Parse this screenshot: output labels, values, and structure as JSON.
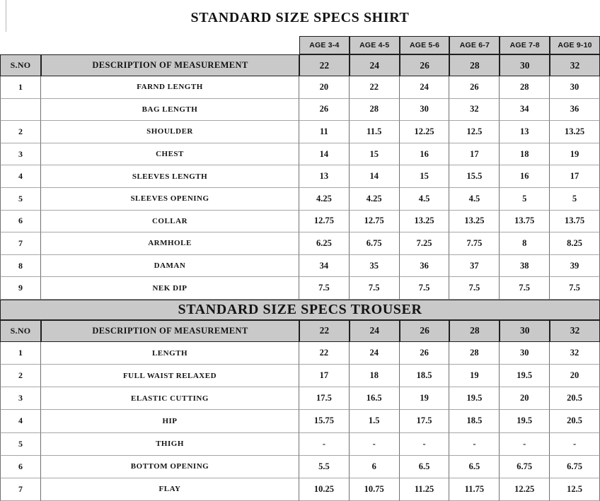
{
  "colors": {
    "header_bg": "#c9c9c9",
    "border_dark": "#1f1f1f",
    "border_light": "#a6a6a6",
    "text": "#141414"
  },
  "shirt": {
    "title": "STANDARD SIZE SPECS SHIRT",
    "age_headers": [
      "AGE 3-4",
      "AGE 4-5",
      "AGE 5-6",
      "AGE 6-7",
      "AGE 7-8",
      "AGE 9-10"
    ],
    "sno_header": "S.NO",
    "desc_header": "DESCRIPTION OF MEASUREMENT",
    "size_headers": [
      "22",
      "24",
      "26",
      "28",
      "30",
      "32"
    ],
    "rows": [
      {
        "sno": "1",
        "desc": "FARND LENGTH",
        "values": [
          "20",
          "22",
          "24",
          "26",
          "28",
          "30"
        ]
      },
      {
        "sno": "",
        "desc": "BAG LENGTH",
        "values": [
          "26",
          "28",
          "30",
          "32",
          "34",
          "36"
        ]
      },
      {
        "sno": "2",
        "desc": "SHOULDER",
        "values": [
          "11",
          "11.5",
          "12.25",
          "12.5",
          "13",
          "13.25"
        ]
      },
      {
        "sno": "3",
        "desc": "CHEST",
        "values": [
          "14",
          "15",
          "16",
          "17",
          "18",
          "19"
        ]
      },
      {
        "sno": "4",
        "desc": "SLEEVES LENGTH",
        "values": [
          "13",
          "14",
          "15",
          "15.5",
          "16",
          "17"
        ]
      },
      {
        "sno": "5",
        "desc": "SLEEVES OPENING",
        "values": [
          "4.25",
          "4.25",
          "4.5",
          "4.5",
          "5",
          "5"
        ]
      },
      {
        "sno": "6",
        "desc": "COLLAR",
        "values": [
          "12.75",
          "12.75",
          "13.25",
          "13.25",
          "13.75",
          "13.75"
        ]
      },
      {
        "sno": "7",
        "desc": "ARMHOLE",
        "values": [
          "6.25",
          "6.75",
          "7.25",
          "7.75",
          "8",
          "8.25"
        ]
      },
      {
        "sno": "8",
        "desc": "DAMAN",
        "values": [
          "34",
          "35",
          "36",
          "37",
          "38",
          "39"
        ]
      },
      {
        "sno": "9",
        "desc": "NEK DIP",
        "values": [
          "7.5",
          "7.5",
          "7.5",
          "7.5",
          "7.5",
          "7.5"
        ]
      }
    ]
  },
  "trouser": {
    "title": "STANDARD SIZE SPECS TROUSER",
    "sno_header": "S.NO",
    "desc_header": "DESCRIPTION OF MEASUREMENT",
    "size_headers": [
      "22",
      "24",
      "26",
      "28",
      "30",
      "32"
    ],
    "rows": [
      {
        "sno": "1",
        "desc": "LENGTH",
        "values": [
          "22",
          "24",
          "26",
          "28",
          "30",
          "32"
        ]
      },
      {
        "sno": "2",
        "desc": "FULL WAIST RELAXED",
        "values": [
          "17",
          "18",
          "18.5",
          "19",
          "19.5",
          "20"
        ]
      },
      {
        "sno": "3",
        "desc": "ELASTIC CUTTING",
        "values": [
          "17.5",
          "16.5",
          "19",
          "19.5",
          "20",
          "20.5"
        ]
      },
      {
        "sno": "4",
        "desc": "HIP",
        "values": [
          "15.75",
          "1.5",
          "17.5",
          "18.5",
          "19.5",
          "20.5"
        ]
      },
      {
        "sno": "5",
        "desc": "THIGH",
        "values": [
          "-",
          "-",
          "-",
          "-",
          "-",
          "-"
        ]
      },
      {
        "sno": "6",
        "desc": "BOTTOM OPENING",
        "values": [
          "5.5",
          "6",
          "6.5",
          "6.5",
          "6.75",
          "6.75"
        ]
      },
      {
        "sno": "7",
        "desc": "FLAY",
        "values": [
          "10.25",
          "10.75",
          "11.25",
          "11.75",
          "12.25",
          "12.5"
        ]
      }
    ]
  }
}
